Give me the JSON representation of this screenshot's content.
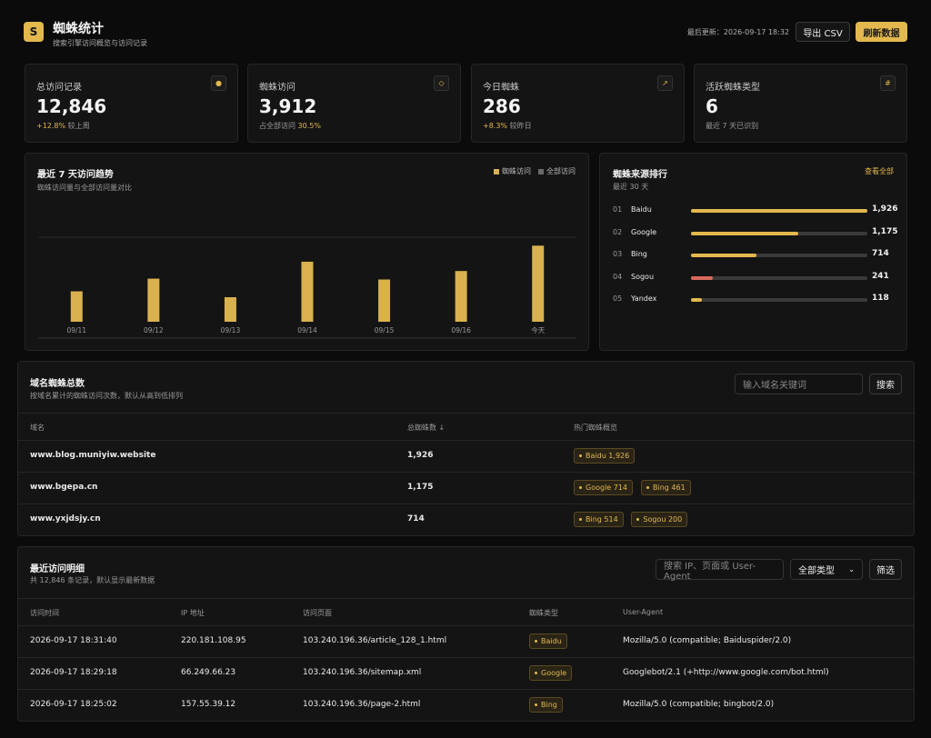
{
  "header": {
    "logo_letter": "S",
    "title": "蜘蛛统计",
    "subtitle": "搜索引擎访问概览与访问记录",
    "updated_label": "最后更新：",
    "updated_time": "2026-09-17 18:32",
    "export_label": "导出 CSV",
    "refresh_label": "刷新数据"
  },
  "stats": [
    {
      "label": "总访问记录",
      "value": "12,846",
      "icon": "dot-icon",
      "glyph": "●",
      "note_highlight": "+12.8%",
      "note_text": " 较上周"
    },
    {
      "label": "蜘蛛访问",
      "value": "3,912",
      "icon": "diamond-icon",
      "glyph": "◇",
      "note_text": "占全部访问 ",
      "note_highlight": "30.5%"
    },
    {
      "label": "今日蜘蛛",
      "value": "286",
      "icon": "trend-up-icon",
      "glyph": "↗",
      "note_highlight": "+8.3%",
      "note_text": " 较昨日"
    },
    {
      "label": "活跃蜘蛛类型",
      "value": "6",
      "icon": "hash-icon",
      "glyph": "#",
      "note_text": "最近 7 天已识别",
      "note_highlight": ""
    }
  ],
  "trend": {
    "title": "最近 7 天访问趋势",
    "subtitle": "蜘蛛访问量与全部访问量对比",
    "legend_spider": "蜘蛛访问",
    "legend_all": "全部访问"
  },
  "chart_data": {
    "type": "bar",
    "categories": [
      "09/11",
      "09/12",
      "09/13",
      "09/14",
      "09/15",
      "09/16",
      "今天"
    ],
    "series": [
      {
        "name": "蜘蛛访问",
        "values": [
          36,
          51,
          29,
          71,
          50,
          60,
          90
        ]
      }
    ],
    "ylim": [
      0,
      100
    ],
    "grid": false,
    "legend": "top-right",
    "colors": {
      "spider": "#d9b14e",
      "all": "#6a6a6a"
    }
  },
  "ranking": {
    "title": "蜘蛛来源排行",
    "subtitle": "最近 30 天",
    "view_all": "查看全部",
    "items": [
      {
        "no": "01",
        "name": "Baidu",
        "value": "1,926",
        "fraction": 1.0,
        "color": "#e2b84f"
      },
      {
        "no": "02",
        "name": "Google",
        "value": "1,175",
        "fraction": 0.61,
        "color": "#e2b84f"
      },
      {
        "no": "03",
        "name": "Bing",
        "value": "714",
        "fraction": 0.37,
        "color": "#e2b84f"
      },
      {
        "no": "04",
        "name": "Sogou",
        "value": "241",
        "fraction": 0.125,
        "color": "#d96a5c"
      },
      {
        "no": "05",
        "name": "Yandex",
        "value": "118",
        "fraction": 0.06,
        "color": "#e2b84f"
      }
    ]
  },
  "domains": {
    "title": "域名蜘蛛总数",
    "subtitle": "按域名累计的蜘蛛访问次数，默认从高到低排列",
    "search_placeholder": "输入域名关键词",
    "search_button": "搜索",
    "columns": {
      "domain": "域名",
      "total": "总蜘蛛数 ↓",
      "hot": "热门蜘蛛概览"
    },
    "rows": [
      {
        "domain": "www.blog.muniyiw.website",
        "total": "1,926",
        "tags": [
          "Baidu 1,926"
        ]
      },
      {
        "domain": "www.bgepa.cn",
        "total": "1,175",
        "tags": [
          "Google 714",
          "Bing 461"
        ]
      },
      {
        "domain": "www.yxjdsjy.cn",
        "total": "714",
        "tags": [
          "Bing 514",
          "Sogou 200"
        ]
      }
    ]
  },
  "recent": {
    "title": "最近访问明细",
    "subtitle": "共 12,846 条记录，默认显示最新数据",
    "search_placeholder": "搜索 IP、页面或 User-Agent",
    "type_select": "全部类型",
    "filter_button": "筛选",
    "columns": {
      "time": "访问时间",
      "ip": "IP 地址",
      "page": "访问页面",
      "type": "蜘蛛类型",
      "ua": "User-Agent"
    },
    "rows": [
      {
        "time": "2026-09-17 18:31:40",
        "ip": "220.181.108.95",
        "page": "103.240.196.36/article_128_1.html",
        "type": "Baidu",
        "ua": "Mozilla/5.0 (compatible; Baiduspider/2.0)"
      },
      {
        "time": "2026-09-17 18:29:18",
        "ip": "66.249.66.23",
        "page": "103.240.196.36/sitemap.xml",
        "type": "Google",
        "ua": "Googlebot/2.1 (+http://www.google.com/bot.html)"
      },
      {
        "time": "2026-09-17 18:25:02",
        "ip": "157.55.39.12",
        "page": "103.240.196.36/page-2.html",
        "type": "Bing",
        "ua": "Mozilla/5.0 (compatible; bingbot/2.0)"
      }
    ]
  }
}
